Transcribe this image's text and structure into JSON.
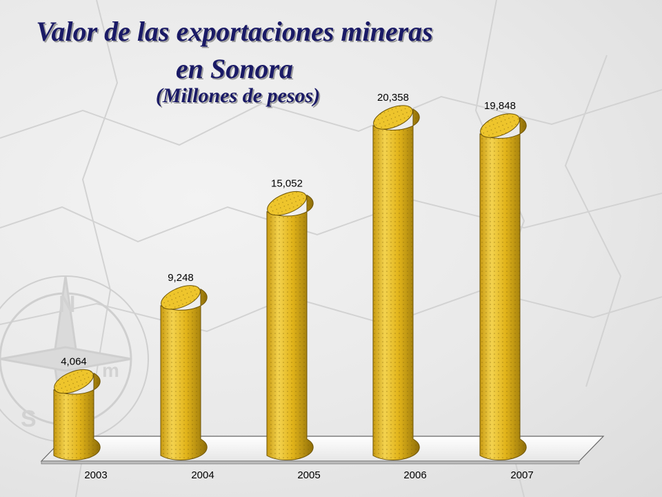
{
  "title": {
    "line1": "Valor de las exportaciones mineras",
    "line2": "en Sonora",
    "line3": "(Millones de pesos)"
  },
  "chart_data": {
    "type": "bar",
    "bar_style": "3d-cylinder",
    "categories": [
      "2003",
      "2004",
      "2005",
      "2006",
      "2007"
    ],
    "values": [
      4064,
      9248,
      15052,
      20358,
      19848
    ],
    "data_labels": [
      "4,064",
      "9,248",
      "15,052",
      "20,358",
      "19,848"
    ],
    "xlabel": "",
    "ylabel": "",
    "ylim": [
      0,
      20358
    ],
    "grid": false,
    "legend": "none",
    "colors": {
      "bar": "#e8b81c",
      "bar_dark": "#9c7a0c",
      "bar_light": "#f6d85a",
      "floor": "#ffffff",
      "title": "#1a1a66"
    }
  },
  "background": {
    "decoration": "compass-rose-icon",
    "letters": [
      "N",
      "S",
      "m"
    ]
  }
}
